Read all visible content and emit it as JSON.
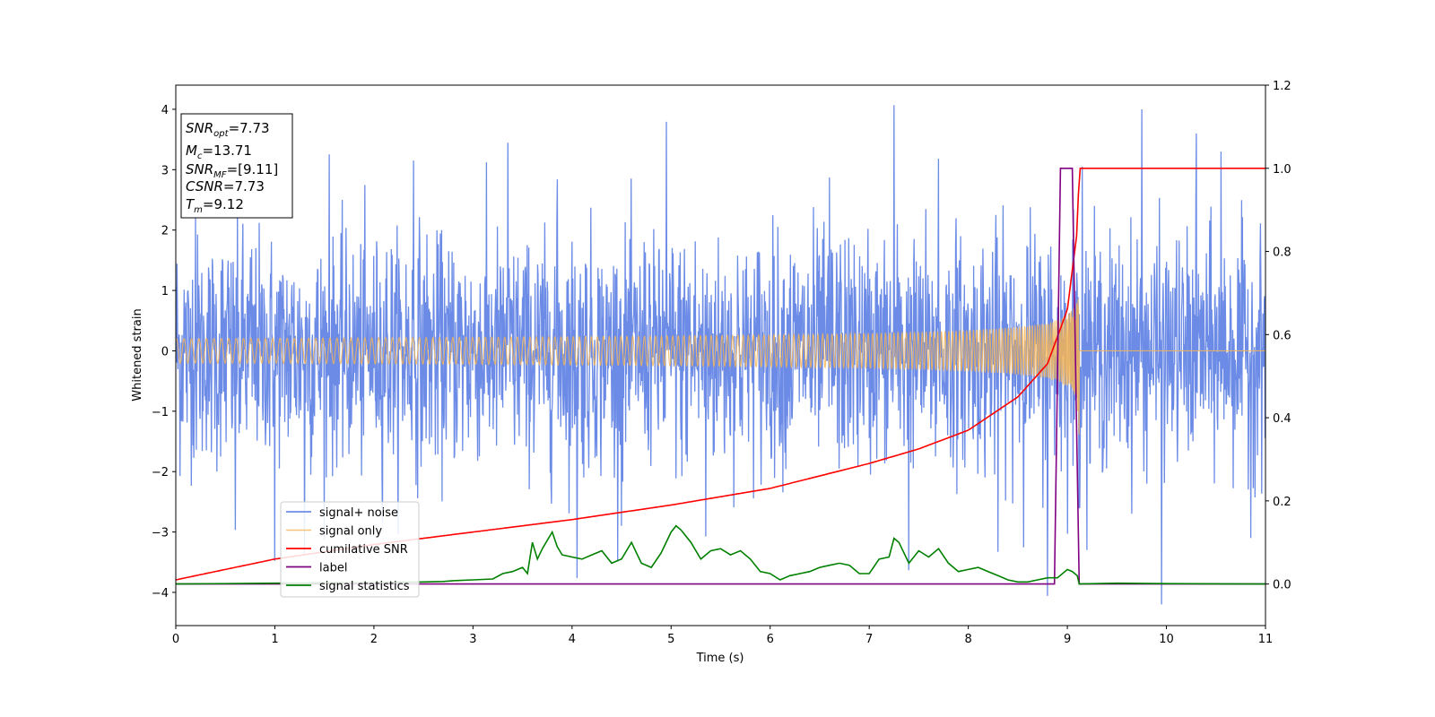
{
  "chart_data": {
    "type": "line",
    "xlabel": "Time (s)",
    "ylabel": "Whitened strain",
    "xlim": [
      0,
      11
    ],
    "ylim_left": [
      -4.55,
      4.4
    ],
    "ylim_right": [
      -0.1,
      1.2
    ],
    "x_ticks": [
      "0",
      "1",
      "2",
      "3",
      "4",
      "5",
      "6",
      "7",
      "8",
      "9",
      "10",
      "11"
    ],
    "y_left_ticks": [
      "4",
      "3",
      "2",
      "1",
      "0",
      "−1",
      "−2",
      "−3",
      "−4"
    ],
    "y_right_ticks": [
      "1.2",
      "1.0",
      "0.8",
      "0.6",
      "0.4",
      "0.2",
      "0.0"
    ],
    "annotation_box": [
      {
        "main": "SNR",
        "sub": "opt",
        "rest": "=7.73"
      },
      {
        "main": "M",
        "sub": "c",
        "rest": "=13.71"
      },
      {
        "main": "SNR",
        "sub": "MF",
        "rest": "=[9.11]"
      },
      {
        "main": "CSNR",
        "sub": "",
        "rest": "=7.73"
      },
      {
        "main": "T",
        "sub": "m",
        "rest": "=9.12"
      }
    ],
    "legend_position": "lower-left",
    "series": [
      {
        "name": "signal+ noise",
        "axis": "left",
        "color": "#6b8be6",
        "style": "noise",
        "sigma": 0.92,
        "spike_times": [
          0.2,
          0.6,
          1.0,
          1.3,
          1.55,
          2.4,
          3.35,
          3.85,
          4.05,
          4.5,
          4.95,
          5.35,
          6.6,
          7.25,
          7.4,
          7.7,
          8.3,
          8.8,
          9.15,
          9.75,
          9.95,
          10.3,
          10.55,
          10.85
        ],
        "spike_values": [
          2.4,
          -3.1,
          -3.45,
          -3.2,
          3.1,
          3.0,
          3.65,
          3.0,
          -3.6,
          -3.1,
          3.65,
          -3.3,
          3.1,
          3.8,
          -3.4,
          3.1,
          -3.05,
          -3.7,
          3.05,
          4.0,
          -4.2,
          3.6,
          3.3,
          -3.1
        ]
      },
      {
        "name": "signal only",
        "axis": "left",
        "color": "#f5b455",
        "style": "chirp",
        "merger_time": 9.12,
        "peak_amplitude": 1.4
      },
      {
        "name": "cumilative SNR",
        "axis": "right",
        "color": "#ff0000",
        "x": [
          0,
          1,
          2,
          3,
          4,
          5,
          6,
          7,
          7.5,
          8,
          8.5,
          8.8,
          9.0,
          9.1,
          9.12,
          11
        ],
        "y": [
          0.01,
          0.06,
          0.095,
          0.125,
          0.155,
          0.19,
          0.23,
          0.29,
          0.325,
          0.37,
          0.45,
          0.53,
          0.66,
          0.85,
          1.0,
          1.0
        ]
      },
      {
        "name": "label",
        "axis": "right",
        "color": "#800080",
        "x": [
          0,
          8.87,
          8.93,
          9.05,
          9.12,
          11
        ],
        "y": [
          0,
          0,
          1,
          1,
          0,
          0
        ]
      },
      {
        "name": "signal statistics",
        "axis": "right",
        "color": "#008000",
        "x": [
          0,
          1,
          2,
          2.5,
          2.7,
          2.8,
          3.0,
          3.2,
          3.3,
          3.4,
          3.5,
          3.55,
          3.6,
          3.65,
          3.7,
          3.8,
          3.85,
          3.9,
          4.0,
          4.1,
          4.2,
          4.3,
          4.4,
          4.5,
          4.6,
          4.7,
          4.8,
          4.9,
          5.0,
          5.05,
          5.1,
          5.2,
          5.3,
          5.4,
          5.5,
          5.6,
          5.7,
          5.8,
          5.9,
          6.0,
          6.1,
          6.2,
          6.3,
          6.4,
          6.5,
          6.6,
          6.7,
          6.8,
          6.9,
          7.0,
          7.1,
          7.2,
          7.25,
          7.3,
          7.4,
          7.5,
          7.6,
          7.7,
          7.8,
          7.9,
          8.0,
          8.1,
          8.2,
          8.3,
          8.4,
          8.5,
          8.6,
          8.7,
          8.8,
          8.9,
          9.0,
          9.05,
          9.1,
          9.12,
          9.5,
          10,
          11
        ],
        "y": [
          0.0,
          0.002,
          0.003,
          0.005,
          0.006,
          0.008,
          0.01,
          0.012,
          0.025,
          0.03,
          0.04,
          0.025,
          0.1,
          0.06,
          0.085,
          0.125,
          0.09,
          0.07,
          0.065,
          0.06,
          0.07,
          0.08,
          0.05,
          0.06,
          0.1,
          0.05,
          0.04,
          0.075,
          0.125,
          0.14,
          0.13,
          0.1,
          0.06,
          0.08,
          0.085,
          0.07,
          0.08,
          0.06,
          0.03,
          0.025,
          0.01,
          0.02,
          0.025,
          0.03,
          0.04,
          0.045,
          0.05,
          0.045,
          0.025,
          0.025,
          0.06,
          0.065,
          0.11,
          0.1,
          0.05,
          0.08,
          0.065,
          0.085,
          0.05,
          0.03,
          0.035,
          0.04,
          0.03,
          0.02,
          0.01,
          0.005,
          0.005,
          0.01,
          0.015,
          0.015,
          0.035,
          0.03,
          0.02,
          0.0,
          0.002,
          0.001,
          0.0
        ]
      }
    ]
  }
}
